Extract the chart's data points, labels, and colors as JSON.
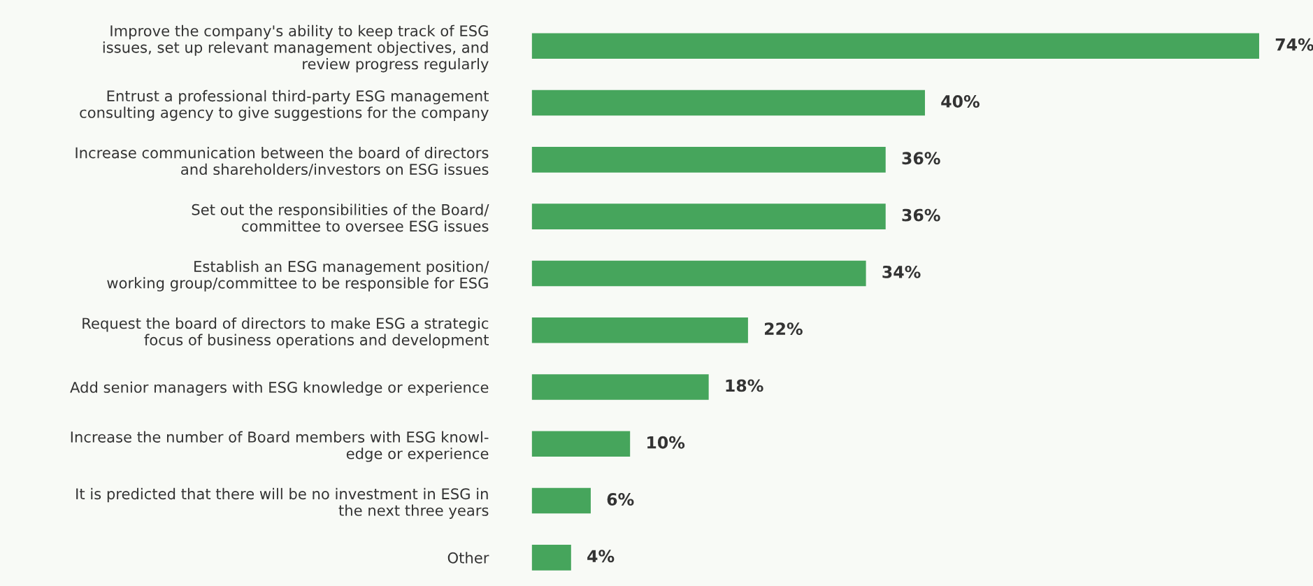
{
  "chart_data": {
    "type": "bar",
    "orientation": "horizontal",
    "categories": [
      "Improve the company's ability to keep track of ESG\nissues, set up relevant management objectives, and\nreview progress regularly",
      "Entrust a professional third-party ESG management\nconsulting agency to give suggestions for the company",
      "Increase communication between the board of directors\nand shareholders/investors on ESG issues",
      "Set out the responsibilities of the Board/\ncommittee to oversee ESG issues",
      "Establish an ESG management position/\nworking group/committee to be responsible for ESG",
      "Request the board of directors to make ESG a strategic\nfocus of business operations and development",
      "Add senior managers with ESG knowledge or experience",
      "Increase the number of Board members with ESG knowl-\nedge or experience",
      "It is predicted that there will be no investment in ESG in\nthe next three years",
      "Other"
    ],
    "values": [
      74,
      40,
      36,
      36,
      34,
      22,
      18,
      10,
      6,
      4
    ],
    "value_labels": [
      "74%",
      "40%",
      "36%",
      "36%",
      "34%",
      "22%",
      "18%",
      "10%",
      "6%",
      "4%"
    ],
    "color": "#46a55c",
    "grid": false,
    "legend": false
  }
}
